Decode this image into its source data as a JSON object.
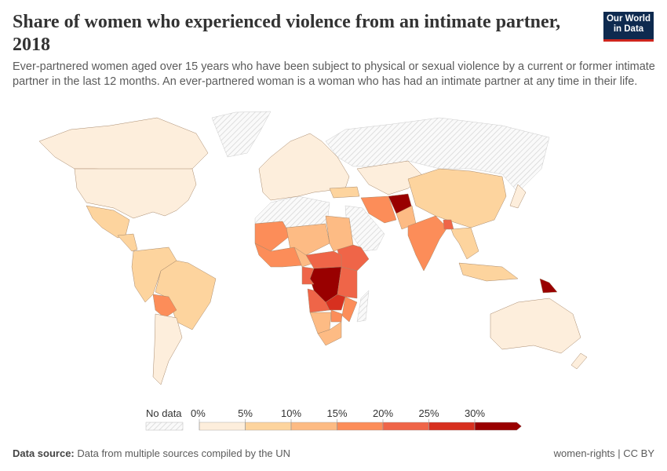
{
  "header": {
    "title": "Share of women who experienced violence from an intimate partner, 2018",
    "subtitle": "Ever-partnered women aged over 15 years who have been subject to physical or sexual violence by a current or former intimate partner in the last 12 months. An ever-partnered woman is a woman who has had an intimate partner at any time in their life.",
    "logo_text": "Our World in Data"
  },
  "footer": {
    "source_label": "Data source:",
    "source_text": "Data from multiple sources compiled by the UN",
    "license": "women-rights | CC BY"
  },
  "chart_data": {
    "type": "choropleth",
    "year": 2018,
    "unit": "%",
    "legend": {
      "no_data_label": "No data",
      "no_data_color": "#e0e0e0",
      "bins": [
        0,
        5,
        10,
        15,
        20,
        25,
        30
      ],
      "tick_labels": [
        "0%",
        "5%",
        "10%",
        "15%",
        "20%",
        "25%",
        "30%"
      ],
      "colors": [
        "#fdeedc",
        "#fdd49e",
        "#fdbb84",
        "#fc8d59",
        "#ef6548",
        "#d7301f",
        "#990000"
      ],
      "placement": "bottom-center"
    },
    "regions": [
      {
        "name": "Greenland",
        "value": null
      },
      {
        "name": "Russia",
        "value": null
      },
      {
        "name": "North Africa",
        "value": null
      },
      {
        "name": "Arabian Peninsula",
        "value": null
      },
      {
        "name": "Madagascar",
        "value": null
      },
      {
        "name": "Canada",
        "value": 3
      },
      {
        "name": "United States",
        "value": 4
      },
      {
        "name": "Mexico",
        "value": 9
      },
      {
        "name": "Central America",
        "value": 8
      },
      {
        "name": "Northern South America",
        "value": 9
      },
      {
        "name": "Brazil",
        "value": 7
      },
      {
        "name": "Bolivia",
        "value": 18
      },
      {
        "name": "Argentina and Chile",
        "value": 4
      },
      {
        "name": "Europe",
        "value": 4
      },
      {
        "name": "Turkey",
        "value": 8
      },
      {
        "name": "Central Asia",
        "value": 3
      },
      {
        "name": "China",
        "value": 8
      },
      {
        "name": "Iran",
        "value": 18
      },
      {
        "name": "Afghanistan",
        "value": 35
      },
      {
        "name": "Pakistan",
        "value": 14
      },
      {
        "name": "India",
        "value": 18
      },
      {
        "name": "Bangladesh",
        "value": 23
      },
      {
        "name": "Southeast Asia",
        "value": 8
      },
      {
        "name": "Maritime Southeast Asia",
        "value": 9
      },
      {
        "name": "Papua New Guinea",
        "value": 31
      },
      {
        "name": "Japan",
        "value": 4
      },
      {
        "name": "Australia",
        "value": 3
      },
      {
        "name": "New Zealand",
        "value": 4
      },
      {
        "name": "West Sahel",
        "value": 18
      },
      {
        "name": "Central Sahel",
        "value": 13
      },
      {
        "name": "Sudan",
        "value": 12
      },
      {
        "name": "Coastal West Africa",
        "value": 17
      },
      {
        "name": "Nigeria",
        "value": 14
      },
      {
        "name": "Ethiopia",
        "value": 24
      },
      {
        "name": "South Sudan and CAR",
        "value": 22
      },
      {
        "name": "DR Congo",
        "value": 36
      },
      {
        "name": "East Africa",
        "value": 24
      },
      {
        "name": "Cameroon and Gabon",
        "value": 20
      },
      {
        "name": "Angola",
        "value": 24
      },
      {
        "name": "Zambia",
        "value": 27
      },
      {
        "name": "Mozambique",
        "value": 17
      },
      {
        "name": "Namibia and Botswana",
        "value": 13
      },
      {
        "name": "Zimbabwe",
        "value": 18
      },
      {
        "name": "South Africa",
        "value": 12
      }
    ]
  }
}
